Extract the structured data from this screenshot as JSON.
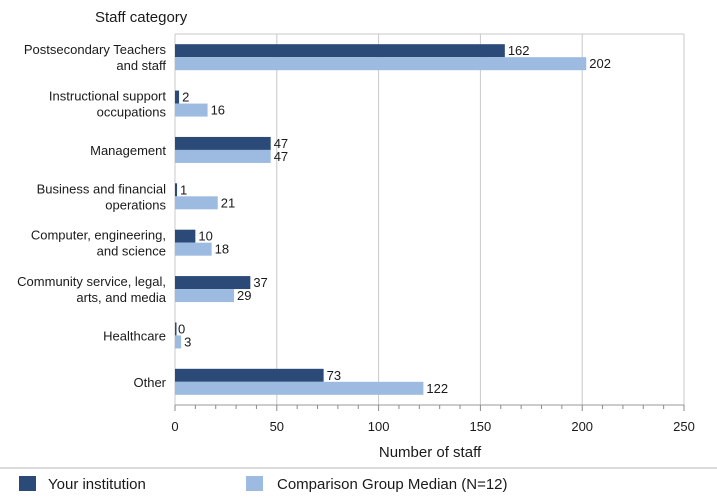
{
  "chart_data": {
    "type": "bar",
    "orientation": "horizontal",
    "title": "",
    "ylabel": "Staff category",
    "xlabel": "Number of staff",
    "xlim": [
      0,
      250
    ],
    "xticks": [
      0,
      50,
      100,
      150,
      200,
      250
    ],
    "grid": "vertical",
    "legend_position": "bottom",
    "categories": [
      [
        "Postsecondary Teachers",
        "and staff"
      ],
      [
        "Instructional support",
        "occupations"
      ],
      [
        "Management"
      ],
      [
        "Business and financial",
        "operations"
      ],
      [
        "Computer, engineering,",
        "and science"
      ],
      [
        "Community service, legal,",
        "arts, and media"
      ],
      [
        "Healthcare"
      ],
      [
        "Other"
      ]
    ],
    "series": [
      {
        "name": "Your institution",
        "color": "#2b4a78",
        "values": [
          162,
          2,
          47,
          1,
          10,
          37,
          0,
          73
        ]
      },
      {
        "name": "Comparison Group Median (N=12)",
        "color": "#9dbbe0",
        "values": [
          202,
          16,
          47,
          21,
          18,
          29,
          3,
          122
        ]
      }
    ]
  }
}
